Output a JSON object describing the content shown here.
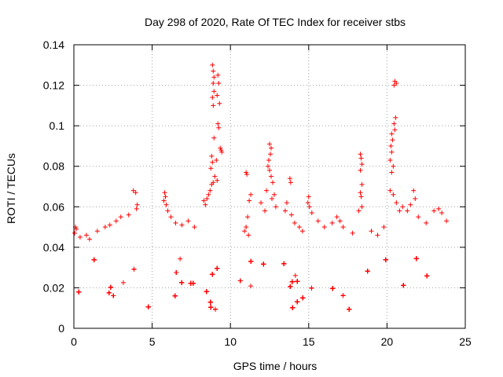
{
  "chart_data": {
    "type": "scatter",
    "title": "Day 298 of 2020, Rate Of TEC Index for receiver stbs",
    "xlabel": "GPS time / hours",
    "ylabel": "ROTI / TECUs",
    "xlim": [
      0,
      25
    ],
    "ylim": [
      0,
      0.14
    ],
    "x_ticks": [
      "0",
      "5",
      "10",
      "15",
      "20",
      "25"
    ],
    "y_ticks": [
      "0",
      "0.02",
      "0.04",
      "0.06",
      "0.08",
      "0.1",
      "0.12",
      "0.14"
    ],
    "grid": true,
    "marker": "+",
    "color": "#ff0000",
    "series": [
      {
        "points": [
          [
            8.85,
            0.13
          ],
          [
            8.9,
            0.127
          ],
          [
            8.95,
            0.124
          ],
          [
            8.9,
            0.121
          ],
          [
            9.2,
            0.125
          ],
          [
            9.25,
            0.121
          ],
          [
            8.95,
            0.117
          ],
          [
            9.15,
            0.115
          ],
          [
            8.85,
            0.114
          ],
          [
            9.3,
            0.111
          ],
          [
            8.9,
            0.11
          ],
          [
            9.2,
            0.101
          ],
          [
            9.25,
            0.099
          ],
          [
            8.95,
            0.094
          ],
          [
            9.35,
            0.089
          ],
          [
            9.4,
            0.088
          ],
          [
            9.45,
            0.087
          ],
          [
            8.8,
            0.085
          ],
          [
            9.1,
            0.083
          ],
          [
            8.85,
            0.082
          ],
          [
            8.75,
            0.079
          ],
          [
            9.0,
            0.075
          ],
          [
            9.15,
            0.073
          ],
          [
            8.9,
            0.072
          ],
          [
            8.8,
            0.071
          ],
          [
            8.7,
            0.068
          ],
          [
            8.6,
            0.066
          ],
          [
            8.5,
            0.064
          ],
          [
            8.3,
            0.063
          ],
          [
            8.4,
            0.061
          ],
          [
            20.5,
            0.122
          ],
          [
            20.6,
            0.121
          ],
          [
            20.45,
            0.12
          ],
          [
            20.55,
            0.104
          ],
          [
            20.45,
            0.101
          ],
          [
            20.5,
            0.098
          ],
          [
            20.3,
            0.096
          ],
          [
            20.35,
            0.093
          ],
          [
            20.25,
            0.09
          ],
          [
            20.3,
            0.087
          ],
          [
            20.2,
            0.083
          ],
          [
            20.4,
            0.08
          ],
          [
            20.3,
            0.077
          ],
          [
            20.2,
            0.068
          ],
          [
            20.4,
            0.066
          ],
          [
            20.6,
            0.062
          ],
          [
            20.8,
            0.058
          ],
          [
            21.0,
            0.06
          ],
          [
            18.3,
            0.086
          ],
          [
            18.35,
            0.084
          ],
          [
            18.4,
            0.081
          ],
          [
            18.3,
            0.078
          ],
          [
            18.4,
            0.071
          ],
          [
            18.3,
            0.067
          ],
          [
            18.35,
            0.065
          ],
          [
            18.4,
            0.06
          ],
          [
            18.2,
            0.058
          ],
          [
            12.5,
            0.091
          ],
          [
            12.6,
            0.089
          ],
          [
            12.55,
            0.086
          ],
          [
            12.45,
            0.083
          ],
          [
            12.4,
            0.08
          ],
          [
            12.5,
            0.078
          ],
          [
            12.6,
            0.075
          ],
          [
            12.7,
            0.072
          ],
          [
            12.3,
            0.068
          ],
          [
            12.8,
            0.066
          ],
          [
            12.65,
            0.064
          ],
          [
            12.9,
            0.06
          ],
          [
            12.2,
            0.058
          ],
          [
            11.95,
            0.062
          ],
          [
            11.0,
            0.077
          ],
          [
            11.05,
            0.076
          ],
          [
            11.3,
            0.066
          ],
          [
            11.2,
            0.063
          ],
          [
            11.1,
            0.055
          ],
          [
            11.0,
            0.05
          ],
          [
            11.15,
            0.046
          ],
          [
            10.9,
            0.048
          ],
          [
            13.8,
            0.074
          ],
          [
            13.85,
            0.072
          ],
          [
            13.6,
            0.062
          ],
          [
            13.5,
            0.058
          ],
          [
            13.9,
            0.056
          ],
          [
            14.1,
            0.052
          ],
          [
            14.4,
            0.05
          ],
          [
            14.6,
            0.048
          ],
          [
            15.0,
            0.065
          ],
          [
            14.95,
            0.062
          ],
          [
            15.05,
            0.06
          ],
          [
            15.2,
            0.057
          ],
          [
            15.6,
            0.053
          ],
          [
            16.0,
            0.05
          ],
          [
            16.5,
            0.052
          ],
          [
            16.8,
            0.055
          ],
          [
            17.0,
            0.053
          ],
          [
            17.2,
            0.05
          ],
          [
            3.8,
            0.068
          ],
          [
            3.95,
            0.067
          ],
          [
            4.05,
            0.061
          ],
          [
            4.0,
            0.059
          ],
          [
            3.5,
            0.056
          ],
          [
            3.0,
            0.055
          ],
          [
            2.7,
            0.053
          ],
          [
            2.3,
            0.051
          ],
          [
            2.0,
            0.05
          ],
          [
            1.5,
            0.048
          ],
          [
            5.8,
            0.067
          ],
          [
            5.85,
            0.065
          ],
          [
            5.75,
            0.063
          ],
          [
            5.9,
            0.061
          ],
          [
            6.0,
            0.058
          ],
          [
            6.2,
            0.055
          ],
          [
            6.5,
            0.052
          ],
          [
            6.9,
            0.051
          ],
          [
            7.3,
            0.053
          ],
          [
            7.7,
            0.05
          ],
          [
            21.7,
            0.068
          ],
          [
            21.8,
            0.064
          ],
          [
            21.5,
            0.061
          ],
          [
            21.3,
            0.058
          ],
          [
            22.0,
            0.055
          ],
          [
            22.5,
            0.052
          ],
          [
            23.0,
            0.058
          ],
          [
            23.3,
            0.059
          ],
          [
            23.5,
            0.057
          ],
          [
            23.8,
            0.053
          ],
          [
            0.1,
            0.05
          ],
          [
            0.15,
            0.049
          ],
          [
            0.05,
            0.047
          ],
          [
            0.4,
            0.045
          ],
          [
            0.8,
            0.046
          ],
          [
            1.0,
            0.044
          ],
          [
            19.0,
            0.048
          ],
          [
            19.4,
            0.046
          ],
          [
            19.8,
            0.05
          ],
          [
            17.8,
            0.047
          ]
        ]
      }
    ]
  }
}
